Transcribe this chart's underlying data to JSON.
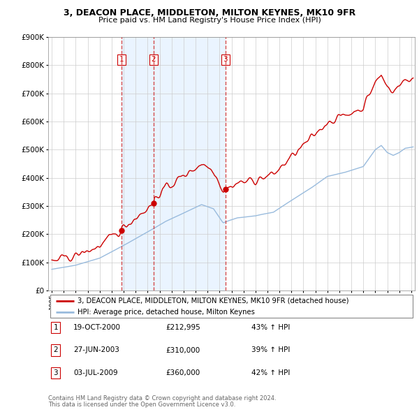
{
  "title1": "3, DEACON PLACE, MIDDLETON, MILTON KEYNES, MK10 9FR",
  "title2": "Price paid vs. HM Land Registry's House Price Index (HPI)",
  "legend_line1": "3, DEACON PLACE, MIDDLETON, MILTON KEYNES, MK10 9FR (detached house)",
  "legend_line2": "HPI: Average price, detached house, Milton Keynes",
  "footer1": "Contains HM Land Registry data © Crown copyright and database right 2024.",
  "footer2": "This data is licensed under the Open Government Licence v3.0.",
  "table": [
    {
      "num": "1",
      "date": "19-OCT-2000",
      "price": "£212,995",
      "hpi": "43% ↑ HPI"
    },
    {
      "num": "2",
      "date": "27-JUN-2003",
      "price": "£310,000",
      "hpi": "39% ↑ HPI"
    },
    {
      "num": "3",
      "date": "03-JUL-2009",
      "price": "£360,000",
      "hpi": "42% ↑ HPI"
    }
  ],
  "sale_dates_decimal": [
    2000.8,
    2003.5,
    2009.5
  ],
  "sale_prices": [
    212995,
    310000,
    360000
  ],
  "red_color": "#cc0000",
  "blue_color": "#99bbdd",
  "shade_color": "#ddeeff",
  "grid_color": "#cccccc",
  "ylim": [
    0,
    900000
  ],
  "xlim_start": 1994.7,
  "xlim_end": 2025.3,
  "yticks": [
    0,
    100000,
    200000,
    300000,
    400000,
    500000,
    600000,
    700000,
    800000,
    900000
  ]
}
